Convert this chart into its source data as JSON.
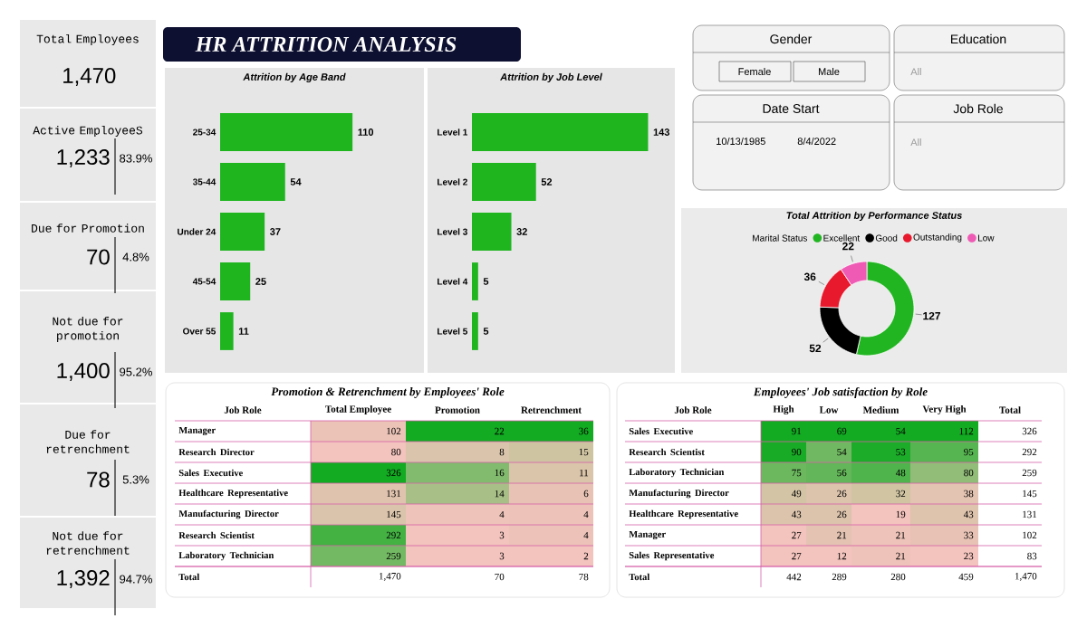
{
  "chart_data": [
    {
      "type": "other",
      "title": "HR ATTRITION ANALYSIS",
      "annotations": [
        "Total Employees",
        "1,470",
        "Active EmployeeS",
        "1,233",
        "83.9%",
        "Due for Promotion",
        "70",
        "4.8%",
        "Not due for promotion",
        "1,400",
        "95.2%",
        "Due for retrenchment",
        "78",
        "5.3%",
        "Not due for retrenchment",
        "1,392",
        "94.7%"
      ]
    },
    {
      "type": "bar",
      "orientation": "horizontal",
      "title": "Attrition by Age Band",
      "categories": [
        "25-34",
        "35-44",
        "Under 24",
        "45-54",
        "Over 55"
      ],
      "values": [
        110,
        54,
        37,
        25,
        11
      ],
      "color": "#1fb51f",
      "data_labels": true
    },
    {
      "type": "bar",
      "orientation": "horizontal",
      "title": "Attrition by Job Level",
      "categories": [
        "Level 1",
        "Level 2",
        "Level 3",
        "Level 4",
        "Level 5"
      ],
      "values": [
        143,
        52,
        32,
        5,
        5
      ],
      "color": "#1fb51f",
      "data_labels": true
    },
    {
      "type": "other",
      "annotations": [
        "Gender",
        "Female",
        "Male",
        "Education",
        "All",
        "Date Start",
        "10/13/1985",
        "8/4/2022",
        "Job Role",
        "All"
      ]
    },
    {
      "type": "donut",
      "title": "Total Attrition by Performance Status",
      "legend_title": "Marital Status",
      "legend": "top",
      "categories": [
        "Excellent",
        "Good",
        "Outstanding",
        "Low"
      ],
      "values": [
        127,
        52,
        36,
        22
      ],
      "colors": [
        "#22b522",
        "#000000",
        "#e8192c",
        "#ee5ab4"
      ],
      "data_labels": true
    },
    {
      "type": "heatmap",
      "title": "Promotion & Retrenchment by Employees' Role",
      "ylabel": "Job Role",
      "categories": [
        "Total Employee",
        "Promotion",
        "Retrenchment"
      ],
      "y_categories": [
        "Manager",
        "Research Director",
        "Sales Executive",
        "Healthcare Representative",
        "Manufacturing Director",
        "Research Scientist",
        "Laboratory Technician",
        "Total"
      ],
      "cells": [
        [
          102,
          22,
          36
        ],
        [
          80,
          8,
          15
        ],
        [
          326,
          16,
          11
        ],
        [
          131,
          14,
          6
        ],
        [
          145,
          4,
          4
        ],
        [
          292,
          3,
          4
        ],
        [
          259,
          3,
          2
        ],
        [
          null,
          null,
          null
        ]
      ],
      "cell_labels": [
        [
          "102",
          "22",
          "36"
        ],
        [
          "80",
          "8",
          "15"
        ],
        [
          "326",
          "16",
          "11"
        ],
        [
          "131",
          "14",
          "6"
        ],
        [
          "145",
          "4",
          "4"
        ],
        [
          "292",
          "3",
          "4"
        ],
        [
          "259",
          "3",
          "2"
        ],
        [
          "1,470",
          "70",
          "78"
        ]
      ],
      "colors": [
        "#f3c3bd",
        "#c4c49a",
        "#12ab22"
      ]
    },
    {
      "type": "heatmap",
      "title": "Employees' Job satisfaction by Role",
      "ylabel": "Job Role",
      "categories": [
        "High",
        "Low",
        "Medium",
        "Very High",
        "Total"
      ],
      "y_categories": [
        "Sales Executive",
        "Research Scientist",
        "Laboratory Technician",
        "Manufacturing Director",
        "Healthcare Representative",
        "Manager",
        "Sales Representative",
        "Total"
      ],
      "cells": [
        [
          91,
          69,
          54,
          112,
          null
        ],
        [
          90,
          54,
          53,
          95,
          null
        ],
        [
          75,
          56,
          48,
          80,
          null
        ],
        [
          49,
          26,
          32,
          38,
          null
        ],
        [
          43,
          26,
          19,
          43,
          null
        ],
        [
          27,
          21,
          21,
          33,
          null
        ],
        [
          27,
          12,
          21,
          23,
          null
        ],
        [
          null,
          null,
          null,
          null,
          null
        ]
      ],
      "cell_labels": [
        [
          "91",
          "69",
          "54",
          "112",
          "326"
        ],
        [
          "90",
          "54",
          "53",
          "95",
          "292"
        ],
        [
          "75",
          "56",
          "48",
          "80",
          "259"
        ],
        [
          "49",
          "26",
          "32",
          "38",
          "145"
        ],
        [
          "43",
          "26",
          "19",
          "43",
          "131"
        ],
        [
          "27",
          "21",
          "21",
          "33",
          "102"
        ],
        [
          "27",
          "12",
          "21",
          "23",
          "83"
        ],
        [
          "442",
          "289",
          "280",
          "459",
          "1,470"
        ]
      ],
      "colors": [
        "#f3c3bd",
        "#c4c49a",
        "#12ab22"
      ]
    }
  ]
}
